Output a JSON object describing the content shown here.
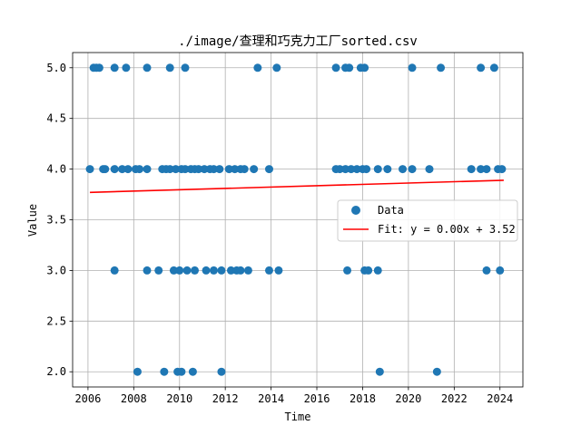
{
  "chart_data": {
    "type": "scatter",
    "title": "./image/查理和巧克力工厂sorted.csv",
    "xlabel": "Time",
    "ylabel": "Value",
    "xlim": [
      "2005-05-01",
      "2025-01-01"
    ],
    "ylim": [
      1.85,
      5.15
    ],
    "x_ticks": [
      "2006",
      "2008",
      "2010",
      "2012",
      "2014",
      "2016",
      "2018",
      "2020",
      "2022",
      "2024"
    ],
    "y_ticks": [
      "2.0",
      "2.5",
      "3.0",
      "3.5",
      "4.0",
      "4.5",
      "5.0"
    ],
    "grid": true,
    "legend_position": "center-right",
    "series": [
      {
        "name": "Data",
        "type": "scatter",
        "color": "#1f77b4",
        "points": [
          [
            "2006-04-01",
            5.0
          ],
          [
            "2006-05-15",
            5.0
          ],
          [
            "2006-07-01",
            5.0
          ],
          [
            "2007-03-01",
            5.0
          ],
          [
            "2007-09-01",
            5.0
          ],
          [
            "2008-08-01",
            5.0
          ],
          [
            "2009-08-01",
            5.0
          ],
          [
            "2010-04-01",
            5.0
          ],
          [
            "2013-06-01",
            5.0
          ],
          [
            "2014-04-01",
            5.0
          ],
          [
            "2016-11-01",
            5.0
          ],
          [
            "2017-04-01",
            5.0
          ],
          [
            "2017-06-01",
            5.0
          ],
          [
            "2017-12-01",
            5.0
          ],
          [
            "2018-02-01",
            5.0
          ],
          [
            "2020-03-01",
            5.0
          ],
          [
            "2021-06-01",
            5.0
          ],
          [
            "2023-03-01",
            5.0
          ],
          [
            "2023-10-01",
            5.0
          ],
          [
            "2006-02-01",
            4.0
          ],
          [
            "2006-09-01",
            4.0
          ],
          [
            "2006-10-01",
            4.0
          ],
          [
            "2007-03-01",
            4.0
          ],
          [
            "2007-07-01",
            4.0
          ],
          [
            "2007-10-01",
            4.0
          ],
          [
            "2008-02-01",
            4.0
          ],
          [
            "2008-04-01",
            4.0
          ],
          [
            "2008-08-01",
            4.0
          ],
          [
            "2009-04-01",
            4.0
          ],
          [
            "2009-06-01",
            4.0
          ],
          [
            "2009-08-01",
            4.0
          ],
          [
            "2009-11-01",
            4.0
          ],
          [
            "2010-02-01",
            4.0
          ],
          [
            "2010-04-01",
            4.0
          ],
          [
            "2010-07-01",
            4.0
          ],
          [
            "2010-09-01",
            4.0
          ],
          [
            "2010-11-01",
            4.0
          ],
          [
            "2011-02-01",
            4.0
          ],
          [
            "2011-05-01",
            4.0
          ],
          [
            "2011-07-01",
            4.0
          ],
          [
            "2011-10-01",
            4.0
          ],
          [
            "2012-03-01",
            4.0
          ],
          [
            "2012-06-01",
            4.0
          ],
          [
            "2012-09-01",
            4.0
          ],
          [
            "2012-11-01",
            4.0
          ],
          [
            "2013-04-01",
            4.0
          ],
          [
            "2013-12-01",
            4.0
          ],
          [
            "2016-11-01",
            4.0
          ],
          [
            "2017-01-01",
            4.0
          ],
          [
            "2017-04-01",
            4.0
          ],
          [
            "2017-07-01",
            4.0
          ],
          [
            "2017-10-01",
            4.0
          ],
          [
            "2018-01-01",
            4.0
          ],
          [
            "2018-03-01",
            4.0
          ],
          [
            "2018-09-01",
            4.0
          ],
          [
            "2019-02-01",
            4.0
          ],
          [
            "2019-10-01",
            4.0
          ],
          [
            "2020-03-01",
            4.0
          ],
          [
            "2020-12-01",
            4.0
          ],
          [
            "2022-10-01",
            4.0
          ],
          [
            "2023-03-01",
            4.0
          ],
          [
            "2023-06-01",
            4.0
          ],
          [
            "2023-12-01",
            4.0
          ],
          [
            "2024-02-01",
            4.0
          ],
          [
            "2007-03-01",
            3.0
          ],
          [
            "2008-08-01",
            3.0
          ],
          [
            "2009-02-01",
            3.0
          ],
          [
            "2009-10-01",
            3.0
          ],
          [
            "2010-01-01",
            3.0
          ],
          [
            "2010-05-01",
            3.0
          ],
          [
            "2010-09-01",
            3.0
          ],
          [
            "2011-03-01",
            3.0
          ],
          [
            "2011-07-01",
            3.0
          ],
          [
            "2011-11-01",
            3.0
          ],
          [
            "2012-04-01",
            3.0
          ],
          [
            "2012-07-01",
            3.0
          ],
          [
            "2012-09-01",
            3.0
          ],
          [
            "2013-01-01",
            3.0
          ],
          [
            "2013-12-01",
            3.0
          ],
          [
            "2014-05-01",
            3.0
          ],
          [
            "2017-05-01",
            3.0
          ],
          [
            "2018-02-01",
            3.0
          ],
          [
            "2018-04-01",
            3.0
          ],
          [
            "2018-09-01",
            3.0
          ],
          [
            "2023-06-01",
            3.0
          ],
          [
            "2024-01-01",
            3.0
          ],
          [
            "2008-03-01",
            2.0
          ],
          [
            "2009-05-01",
            2.0
          ],
          [
            "2009-12-01",
            2.0
          ],
          [
            "2010-02-01",
            2.0
          ],
          [
            "2010-08-01",
            2.0
          ],
          [
            "2011-11-01",
            2.0
          ],
          [
            "2018-10-01",
            2.0
          ],
          [
            "2021-04-01",
            2.0
          ]
        ]
      },
      {
        "name": "Fit: y = 0.00x + 3.52",
        "type": "line",
        "color": "#ff0000",
        "points": [
          [
            "2006-02-01",
            3.77
          ],
          [
            "2024-03-01",
            3.89
          ]
        ]
      }
    ]
  }
}
